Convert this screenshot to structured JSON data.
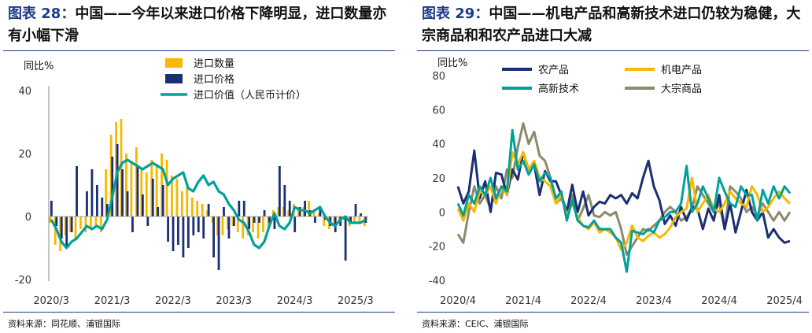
{
  "colors": {
    "title_accent": "#1d3a8a",
    "series_yellow": "#f6b800",
    "series_navy": "#1b2f74",
    "series_teal": "#00a19a",
    "series_olive": "#8c8a6b"
  },
  "left": {
    "fig_label": "图表",
    "fig_num": "28：",
    "title": "中国——今年以来进口价格下降明显，进口数量亦有小幅下滑",
    "source": "资料来源：同花顺、浦银国际"
  },
  "right": {
    "fig_label": "图表",
    "fig_num": "29：",
    "title": "中国——机电产品和高新技术进口仍较为稳健，大宗商品和和农产品进口大减",
    "source": "资料来源：CEIC、浦银国际"
  },
  "chart_data": [
    {
      "type": "bar",
      "ylabel": "同比%",
      "ylim": [
        -20,
        40
      ],
      "yticks": [
        "40",
        "20",
        "0",
        "-20"
      ],
      "xticks": [
        "2020/3",
        "2021/3",
        "2022/3",
        "2023/3",
        "2024/3",
        "2025/3"
      ],
      "legend_position": "top-right",
      "x": [
        "2020/3",
        "2020/4",
        "2020/5",
        "2020/6",
        "2020/7",
        "2020/8",
        "2020/9",
        "2020/10",
        "2020/11",
        "2020/12",
        "2021/1",
        "2021/2",
        "2021/3",
        "2021/4",
        "2021/5",
        "2021/6",
        "2021/7",
        "2021/8",
        "2021/9",
        "2021/10",
        "2021/11",
        "2021/12",
        "2022/1",
        "2022/2",
        "2022/3",
        "2022/4",
        "2022/5",
        "2022/6",
        "2022/7",
        "2022/8",
        "2022/9",
        "2022/10",
        "2022/11",
        "2022/12",
        "2023/1",
        "2023/2",
        "2023/3",
        "2023/4",
        "2023/5",
        "2023/6",
        "2023/7",
        "2023/8",
        "2023/9",
        "2023/10",
        "2023/11",
        "2023/12",
        "2024/1",
        "2024/2",
        "2024/3",
        "2024/4",
        "2024/5",
        "2024/6",
        "2024/7",
        "2024/8",
        "2024/9",
        "2024/10",
        "2024/11",
        "2024/12",
        "2025/1",
        "2025/2",
        "2025/3",
        "2025/4",
        "2025/5"
      ],
      "series": [
        {
          "name": "进口数量",
          "kind": "bar",
          "values": [
            -2,
            -9,
            -11,
            -6,
            -5,
            -7,
            -4,
            -5,
            -4,
            -3,
            -5,
            15,
            26,
            30,
            31,
            20,
            17,
            22,
            15,
            14,
            18,
            16,
            20,
            18,
            13,
            12,
            8,
            10,
            6,
            5,
            4,
            2,
            -2,
            -6,
            -6,
            -4,
            -3,
            -5,
            -7,
            -6,
            -5,
            -7,
            -5,
            -3,
            2,
            3,
            3,
            2,
            4,
            3,
            3,
            5,
            2,
            1,
            -3,
            -4,
            -3,
            -2,
            -1,
            -3,
            -2,
            -2,
            -3
          ]
        },
        {
          "name": "进口价格",
          "kind": "bar",
          "values": [
            5,
            -3,
            -7,
            -10,
            -5,
            16,
            0,
            8,
            15,
            10,
            6,
            4,
            19,
            23,
            15,
            8,
            -5,
            16,
            7,
            -3,
            12,
            3,
            10,
            -8,
            -11,
            -9,
            -13,
            -10,
            -6,
            -5,
            -7,
            4,
            -13,
            -17,
            3,
            -7,
            -3,
            5,
            5,
            -4,
            -2,
            -2,
            2,
            -2,
            -4,
            16,
            10,
            5,
            -5,
            3,
            5,
            2,
            -2,
            3,
            -1,
            -3,
            -5,
            -3,
            -14,
            -2,
            4,
            1,
            -2
          ]
        },
        {
          "name": "进口价值（人民币计价）",
          "kind": "line",
          "values": [
            -1,
            -4,
            -8,
            -10,
            -8,
            -7,
            -5,
            -3,
            -4,
            -3,
            -4,
            -1,
            6,
            14,
            17,
            18,
            17,
            16,
            15,
            16,
            17,
            16,
            15,
            10,
            12,
            13,
            14,
            9,
            8,
            11,
            13,
            10,
            11,
            8,
            7,
            4,
            2,
            -1,
            -2,
            -5,
            -9,
            -10,
            -8,
            -3,
            1,
            -3,
            -4,
            -2,
            3,
            2,
            2,
            1,
            2,
            3,
            0,
            -2,
            -3,
            -1,
            0,
            -2,
            -2,
            -2,
            -1
          ]
        }
      ]
    },
    {
      "type": "line",
      "ylabel": "同比%",
      "ylim": [
        -40,
        80
      ],
      "yticks": [
        "80",
        "60",
        "40",
        "20",
        "0",
        "-20",
        "-40"
      ],
      "xticks": [
        "2020/4",
        "2021/4",
        "2022/4",
        "2023/4",
        "2024/4",
        "2025/4"
      ],
      "legend_position": "top",
      "x": [
        "2020/4",
        "2020/5",
        "2020/6",
        "2020/7",
        "2020/8",
        "2020/9",
        "2020/10",
        "2020/11",
        "2020/12",
        "2021/1",
        "2021/2",
        "2021/3",
        "2021/4",
        "2021/5",
        "2021/6",
        "2021/7",
        "2021/8",
        "2021/9",
        "2021/10",
        "2021/11",
        "2021/12",
        "2022/1",
        "2022/2",
        "2022/3",
        "2022/4",
        "2022/5",
        "2022/6",
        "2022/7",
        "2022/8",
        "2022/9",
        "2022/10",
        "2022/11",
        "2022/12",
        "2023/1",
        "2023/2",
        "2023/3",
        "2023/4",
        "2023/5",
        "2023/6",
        "2023/7",
        "2023/8",
        "2023/9",
        "2023/10",
        "2023/11",
        "2023/12",
        "2024/1",
        "2024/2",
        "2024/3",
        "2024/4",
        "2024/5",
        "2024/6",
        "2024/7",
        "2024/8",
        "2024/9",
        "2024/10",
        "2024/11",
        "2024/12",
        "2025/1",
        "2025/2",
        "2025/3",
        "2025/4",
        "2025/5"
      ],
      "series": [
        {
          "name": "农产品",
          "values": [
            15,
            5,
            12,
            36,
            8,
            18,
            0,
            23,
            22,
            10,
            25,
            19,
            35,
            25,
            28,
            10,
            24,
            18,
            18,
            10,
            0,
            16,
            0,
            12,
            -2,
            3,
            6,
            5,
            10,
            8,
            10,
            5,
            11,
            8,
            20,
            30,
            15,
            7,
            -7,
            -2,
            -8,
            3,
            -5,
            3,
            2,
            -10,
            2,
            -5,
            10,
            -10,
            5,
            -12,
            0,
            13,
            0,
            -5,
            0,
            -15,
            -10,
            -15,
            -18,
            -17
          ]
        },
        {
          "name": "机电产品",
          "values": [
            2,
            -5,
            5,
            0,
            12,
            10,
            15,
            5,
            15,
            10,
            35,
            28,
            35,
            25,
            30,
            20,
            18,
            15,
            5,
            10,
            -2,
            5,
            -3,
            -8,
            -10,
            -6,
            -12,
            -10,
            -12,
            -15,
            -22,
            -18,
            -8,
            -15,
            -17,
            -14,
            -12,
            -15,
            -13,
            -9,
            -3,
            0,
            2,
            20,
            0,
            5,
            10,
            2,
            0,
            5,
            12,
            8,
            5,
            3,
            15,
            10,
            0,
            3,
            8,
            12,
            8,
            5
          ]
        },
        {
          "name": "高新技术",
          "values": [
            5,
            -2,
            10,
            5,
            15,
            10,
            20,
            8,
            15,
            12,
            48,
            25,
            30,
            22,
            28,
            18,
            23,
            20,
            8,
            12,
            -5,
            7,
            -5,
            -8,
            -9,
            -5,
            -10,
            -10,
            -10,
            -15,
            -18,
            -35,
            -11,
            -12,
            -13,
            -10,
            -12,
            -5,
            -3,
            0,
            0,
            5,
            27,
            0,
            5,
            15,
            8,
            0,
            20,
            12,
            5,
            3,
            15,
            10,
            10,
            -5,
            13,
            5,
            15,
            8,
            15,
            11
          ]
        },
        {
          "name": "大宗商品",
          "values": [
            -13,
            -18,
            0,
            15,
            5,
            10,
            2,
            15,
            8,
            25,
            20,
            38,
            52,
            40,
            47,
            33,
            30,
            20,
            5,
            8,
            0,
            10,
            -5,
            2,
            10,
            -2,
            -3,
            0,
            -2,
            0,
            -10,
            -25,
            -20,
            -15,
            -10,
            -11,
            -8,
            -5,
            0,
            3,
            0,
            -5,
            -3,
            2,
            15,
            10,
            5,
            0,
            5,
            -10,
            15,
            12,
            8,
            0,
            3,
            -2,
            5,
            0,
            -5,
            0,
            -5,
            0
          ]
        }
      ]
    }
  ]
}
